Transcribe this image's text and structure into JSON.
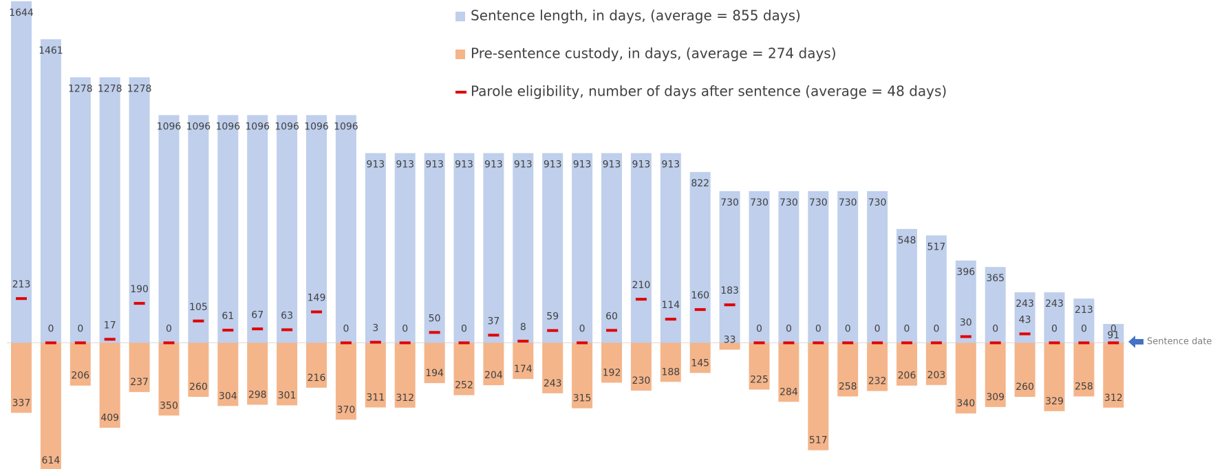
{
  "chart_data": {
    "type": "bar",
    "categories": [
      null,
      null,
      null,
      null,
      null,
      null,
      null,
      null,
      null,
      null,
      null,
      null,
      null,
      null,
      null,
      null,
      null,
      null,
      null,
      null,
      null,
      null,
      null,
      null,
      null,
      null,
      null,
      null,
      null,
      null,
      null,
      null,
      null,
      null,
      null,
      null,
      null,
      null
    ],
    "series": [
      {
        "name": "Sentence length, in days, (average = 855 days)",
        "color": "#bfcfec",
        "values": [
          1644,
          1461,
          1278,
          1278,
          1278,
          1096,
          1096,
          1096,
          1096,
          1096,
          1096,
          1096,
          913,
          913,
          913,
          913,
          913,
          913,
          913,
          913,
          913,
          913,
          913,
          822,
          730,
          730,
          730,
          730,
          730,
          730,
          548,
          517,
          396,
          365,
          243,
          243,
          213,
          91
        ]
      },
      {
        "name": "Pre-sentence custody, in days, (average = 274 days)",
        "color": "#f4b58a",
        "values": [
          337,
          614,
          206,
          409,
          237,
          350,
          260,
          304,
          298,
          301,
          216,
          370,
          311,
          312,
          194,
          252,
          204,
          174,
          243,
          315,
          192,
          230,
          188,
          145,
          33,
          225,
          284,
          517,
          258,
          232,
          206,
          203,
          340,
          309,
          260,
          329,
          258,
          312
        ]
      },
      {
        "name": "Parole eligibility, number of days after sentence (average = 48 days)",
        "color": "#e00000",
        "values": [
          213,
          0,
          0,
          17,
          190,
          0,
          105,
          61,
          67,
          63,
          149,
          0,
          3,
          0,
          50,
          0,
          37,
          8,
          59,
          0,
          60,
          210,
          114,
          160,
          183,
          0,
          0,
          0,
          0,
          0,
          0,
          0,
          30,
          0,
          43,
          0,
          0,
          0
        ]
      }
    ],
    "annotation": "Sentence date",
    "ylim": [
      -700,
      1650
    ]
  }
}
